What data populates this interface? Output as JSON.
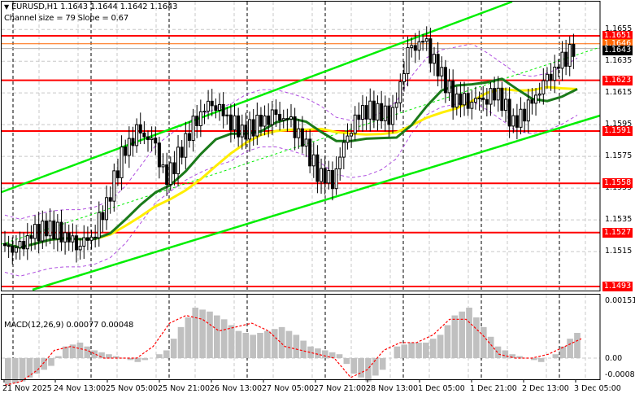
{
  "header": {
    "symbol_line": "EURUSD,H1  1.1643 1.1644 1.1642 1.1643",
    "channel_line": "Channel size = 79 Slope = 0.67"
  },
  "macd_header": "MACD(12,26,9) 0.00077 0.00048",
  "colors": {
    "level_line": "#ff0000",
    "level_tag_bg": "#ff0000",
    "current_tag_bg": "#000000",
    "orange_line": "#ff6600",
    "channel": "#00ee00",
    "ma_fast": "#ffee00",
    "ma_slow": "#1a7a1a",
    "envelope": "#b050e0",
    "histogram": "#c0c0c0",
    "signal": "#ff0000"
  },
  "price_axis": {
    "ticks": [
      "1.1655",
      "1.1635",
      "1.1615",
      "1.1595",
      "1.1575",
      "1.1555",
      "1.1535",
      "1.1515"
    ],
    "levels": [
      "1.1651",
      "1.1623",
      "1.1591",
      "1.1558",
      "1.1527",
      "1.1493"
    ],
    "orange_level": "1.1646",
    "current_price": "1.1643"
  },
  "macd_axis": {
    "top": "0.00151",
    "zero": "0.00",
    "bottom": "-0.00081"
  },
  "time_axis": [
    "21 Nov 2025",
    "24 Nov 13:00",
    "25 Nov 05:00",
    "25 Nov 21:00",
    "26 Nov 13:00",
    "27 Nov 05:00",
    "27 Nov 21:00",
    "28 Nov 13:00",
    "1 Dec 05:00",
    "1 Dec 21:00",
    "2 Dec 13:00",
    "3 Dec 05:00"
  ],
  "chart_data": [
    {
      "type": "candlestick",
      "title": "EURUSD,H1",
      "subtitle": "Channel size = 79 Slope = 0.67",
      "ohlc_last": {
        "open": 1.1643,
        "high": 1.1644,
        "low": 1.1642,
        "close": 1.1643
      },
      "ylim": [
        1.1488,
        1.1668
      ],
      "y_ticks": [
        1.1515,
        1.1535,
        1.1555,
        1.1575,
        1.1595,
        1.1615,
        1.1635,
        1.1655
      ],
      "horizontal_levels": [
        1.1651,
        1.1623,
        1.1591,
        1.1558,
        1.1527,
        1.1493
      ],
      "orange_level": 1.1646,
      "current_price": 1.1643,
      "x_labels": [
        "21 Nov 2025",
        "24 Nov 13:00",
        "25 Nov 05:00",
        "25 Nov 21:00",
        "26 Nov 13:00",
        "27 Nov 05:00",
        "27 Nov 21:00",
        "28 Nov 13:00",
        "1 Dec 05:00",
        "1 Dec 21:00",
        "2 Dec 13:00",
        "3 Dec 05:00"
      ],
      "approx_close_path": [
        1.152,
        1.1515,
        1.1525,
        1.153,
        1.1527,
        1.152,
        1.1524,
        1.1545,
        1.1575,
        1.159,
        1.1585,
        1.156,
        1.158,
        1.16,
        1.161,
        1.16,
        1.159,
        1.1595,
        1.16,
        1.1598,
        1.1585,
        1.1565,
        1.156,
        1.159,
        1.1605,
        1.1603,
        1.16,
        1.164,
        1.1648,
        1.163,
        1.1612,
        1.161,
        1.1612,
        1.1615,
        1.1595,
        1.1605,
        1.162,
        1.1632,
        1.1643
      ],
      "legend": [
        "Linear regression channel (green)",
        "MA fast (yellow)",
        "MA slow (dark green)",
        "Envelopes (purple dashed)"
      ]
    },
    {
      "type": "bar",
      "title": "MACD(12,26,9)",
      "values_label": {
        "macd": 0.00077,
        "signal": 0.00048
      },
      "ylim": [
        -0.00081,
        0.00151
      ],
      "y_ticks": [
        -0.00081,
        0.0,
        0.00151
      ],
      "approx_histogram": [
        -0.0007,
        -0.0006,
        -0.0004,
        -0.0002,
        0.0003,
        0.0004,
        0.0002,
        0.0001,
        0.0,
        -0.0001,
        0.0,
        0.0002,
        0.0008,
        0.0013,
        0.0012,
        0.001,
        0.0007,
        0.0006,
        0.0007,
        0.0008,
        0.0006,
        0.0003,
        0.0002,
        0.0001,
        -0.0004,
        -0.0006,
        -0.0003,
        0.0003,
        0.0004,
        0.0004,
        0.0006,
        0.0011,
        0.0013,
        0.0008,
        0.0003,
        0.0001,
        0.0,
        -0.0001,
        0.0001,
        0.0005,
        0.0008
      ],
      "approx_signal": [
        -0.0007,
        -0.0006,
        -0.0003,
        0.0002,
        0.0003,
        0.0002,
        0.0,
        0.0,
        0.0,
        0.0003,
        0.0009,
        0.0011,
        0.001,
        0.0007,
        0.0008,
        0.0009,
        0.0007,
        0.0003,
        0.0002,
        0.0001,
        0.0,
        -0.0005,
        -0.0003,
        0.0002,
        0.0004,
        0.0004,
        0.0006,
        0.001,
        0.001,
        0.0006,
        0.0001,
        0.0,
        0.0,
        0.0001,
        0.0003,
        0.0005
      ]
    }
  ]
}
